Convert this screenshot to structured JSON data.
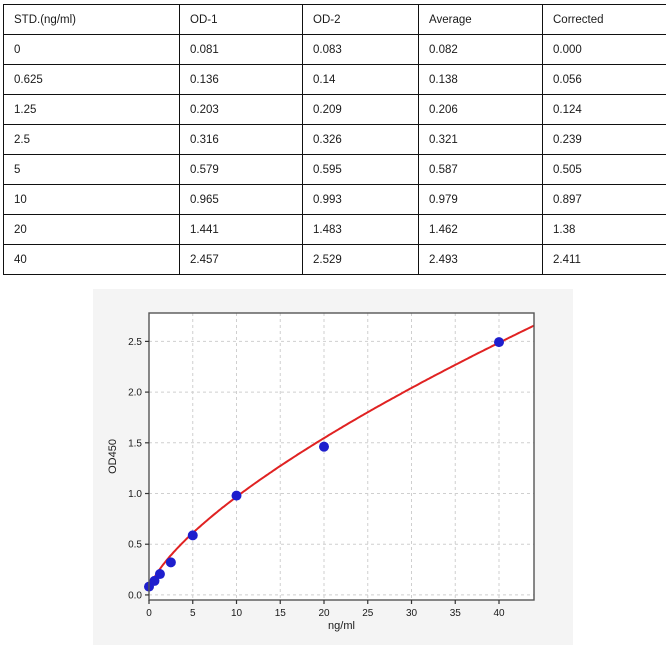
{
  "table": {
    "headers": [
      "STD.(ng/ml)",
      "OD-1",
      "OD-2",
      "Average",
      "Corrected"
    ],
    "rows": [
      [
        "0",
        "0.081",
        "0.083",
        "0.082",
        "0.000"
      ],
      [
        "0.625",
        "0.136",
        "0.14",
        "0.138",
        "0.056"
      ],
      [
        "1.25",
        "0.203",
        "0.209",
        "0.206",
        "0.124"
      ],
      [
        "2.5",
        "0.316",
        "0.326",
        "0.321",
        "0.239"
      ],
      [
        "5",
        "0.579",
        "0.595",
        "0.587",
        "0.505"
      ],
      [
        "10",
        "0.965",
        "0.993",
        "0.979",
        "0.897"
      ],
      [
        "20",
        "1.441",
        "1.483",
        "1.462",
        "1.38"
      ],
      [
        "40",
        "2.457",
        "2.529",
        "2.493",
        "2.411"
      ]
    ]
  },
  "chart_data": {
    "type": "scatter",
    "title": "",
    "xlabel": "ng/ml",
    "ylabel": "OD450",
    "x": [
      0,
      0.625,
      1.25,
      2.5,
      5,
      10,
      20,
      40
    ],
    "y": [
      0.082,
      0.138,
      0.206,
      0.321,
      0.587,
      0.979,
      1.462,
      2.493
    ],
    "fit_curve": {
      "type": "power",
      "formula": "y = c + a*x^b",
      "a": 0.185,
      "b": 0.7,
      "c": 0.04
    },
    "xlim": [
      0,
      44
    ],
    "ylim": [
      -0.05,
      2.78
    ],
    "xticks": [
      0,
      5,
      10,
      15,
      20,
      25,
      30,
      35,
      40
    ],
    "yticks": [
      0.0,
      0.5,
      1.0,
      1.5,
      2.0,
      2.5
    ],
    "grid": true,
    "legend": null,
    "colors": {
      "point": "#1e1ecd",
      "curve": "#e02222",
      "figure_bg": "#f4f4f4",
      "plot_bg": "#ffffff",
      "grid": "#cfcfcf",
      "spine": "#555555"
    }
  }
}
